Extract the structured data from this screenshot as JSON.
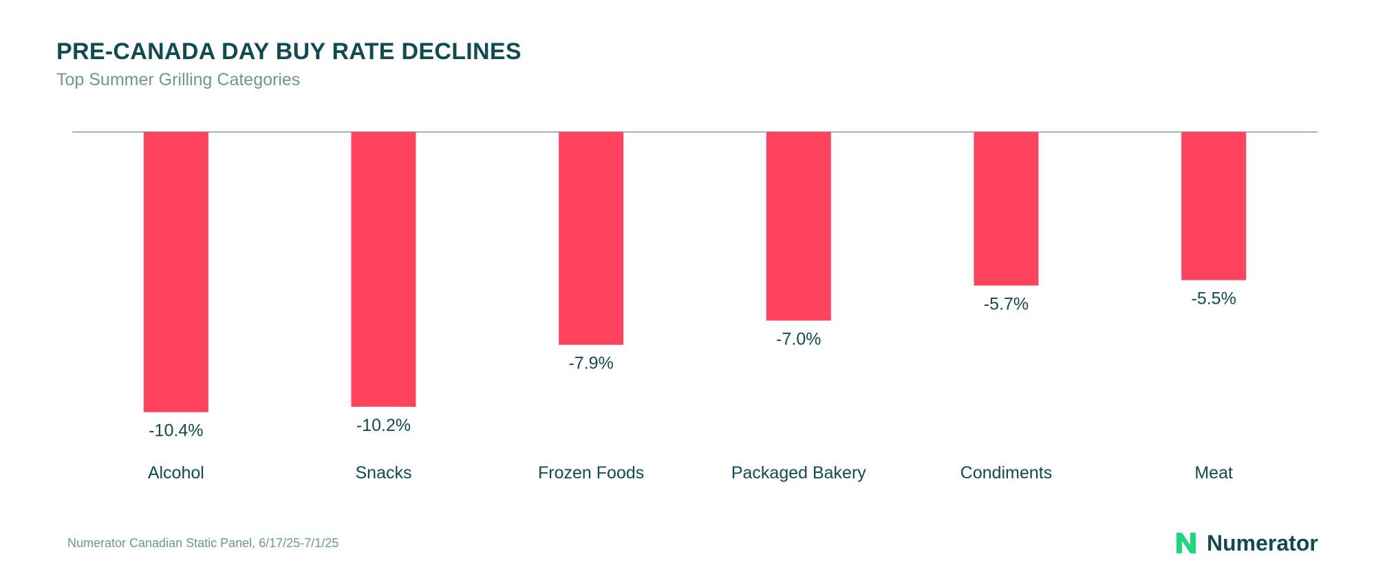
{
  "header": {
    "title": "PRE-CANADA DAY BUY RATE DECLINES",
    "subtitle": "Top Summer Grilling Categories"
  },
  "footer": {
    "source": "Numerator Canadian Static Panel, 6/17/25-7/1/25",
    "brand": "Numerator"
  },
  "colors": {
    "bar": "#ff435f",
    "text_dark": "#0f4b50",
    "text_muted": "#6e9598",
    "axis": "#aab4b6",
    "brand_green": "#1fd87a"
  },
  "chart_data": {
    "type": "bar",
    "title": "PRE-CANADA DAY BUY RATE DECLINES",
    "subtitle": "Top Summer Grilling Categories",
    "categories": [
      "Alcohol",
      "Snacks",
      "Frozen Foods",
      "Packaged Bakery",
      "Condiments",
      "Meat"
    ],
    "values": [
      -10.4,
      -10.2,
      -7.9,
      -7.0,
      -5.7,
      -5.5
    ],
    "value_labels": [
      "-10.4%",
      "-10.2%",
      "-7.9%",
      "-7.0%",
      "-5.7%",
      "-5.5%"
    ],
    "unit": "%",
    "ylim": [
      -12,
      0
    ],
    "grid": false,
    "legend": "none"
  }
}
